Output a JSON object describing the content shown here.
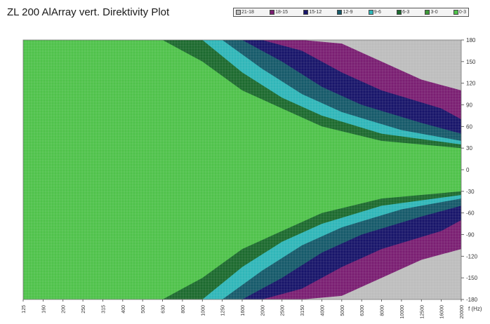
{
  "header": {
    "title": "ZL 200 AlArray vert. Direktivity Plot"
  },
  "legend": [
    {
      "label": "21-18",
      "color": "#bdbdbd"
    },
    {
      "label": "18-15",
      "color": "#7a1e72"
    },
    {
      "label": "15-12",
      "color": "#18156a"
    },
    {
      "label": "12-9",
      "color": "#165a6a"
    },
    {
      "label": "9-6",
      "color": "#2fb6b8"
    },
    {
      "label": "6-3",
      "color": "#1c6a2e"
    },
    {
      "label": "3-0",
      "color": "#3e9a38"
    },
    {
      "label": "0-3",
      "color": "#4fc24a"
    }
  ],
  "chart_data": {
    "type": "heatmap",
    "title": "ZL 200 AlArray vert. Direktivity Plot",
    "xlabel": "f (Hz)",
    "ylabel": "",
    "x_scale": "log",
    "x_ticks": [
      "125",
      "160",
      "200",
      "250",
      "315",
      "400",
      "500",
      "630",
      "800",
      "1000",
      "1250",
      "1600",
      "2000",
      "2500",
      "3150",
      "4000",
      "5000",
      "6300",
      "8000",
      "10000",
      "12500",
      "16000",
      "20000"
    ],
    "y_ticks": [
      180,
      150,
      120,
      90,
      60,
      30,
      0,
      -30,
      -60,
      -90,
      -120,
      -150,
      -180
    ],
    "ylim": [
      -180,
      180
    ],
    "grid": true,
    "contour_levels_db": [
      "0-3",
      "3-0",
      "6-3",
      "9-6",
      "12-9",
      "15-12",
      "18-15",
      "21-18"
    ],
    "contour_boundaries_upper_half": [
      {
        "level": "6-3",
        "angle_at_freq": {
          "630": 180,
          "1000": 150,
          "1600": 110,
          "2500": 85,
          "4000": 60,
          "8000": 40,
          "20000": 30
        }
      },
      {
        "level": "9-6",
        "angle_at_freq": {
          "1000": 180,
          "1600": 135,
          "2500": 100,
          "4000": 75,
          "8000": 50,
          "20000": 35
        }
      },
      {
        "level": "12-9",
        "angle_at_freq": {
          "1250": 180,
          "2000": 140,
          "3150": 105,
          "5000": 80,
          "10000": 55,
          "20000": 40
        }
      },
      {
        "level": "15-12",
        "angle_at_freq": {
          "1600": 180,
          "2500": 150,
          "4000": 115,
          "6300": 90,
          "12500": 65,
          "20000": 50
        }
      },
      {
        "level": "18-15",
        "angle_at_freq": {
          "2000": 180,
          "3150": 165,
          "5000": 135,
          "8000": 110,
          "16000": 85,
          "20000": 70
        }
      },
      {
        "level": "21-18",
        "angle_at_freq": {
          "3150": 180,
          "5000": 175,
          "8000": 150,
          "12500": 125,
          "20000": 110
        }
      }
    ],
    "symmetric_about_0": true
  }
}
